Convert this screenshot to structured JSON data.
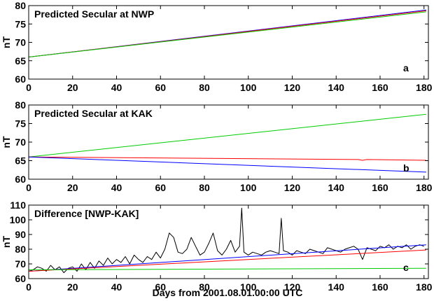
{
  "chart_data": [
    {
      "type": "line",
      "title": "Predicted Secular at NWP",
      "panel_label": "a",
      "ylabel": "nT",
      "xlim": [
        0,
        182
      ],
      "ylim": [
        60,
        80
      ],
      "xticks": [
        "0",
        "20",
        "40",
        "60",
        "80",
        "100",
        "120",
        "140",
        "160",
        "180"
      ],
      "yticks": [
        "60",
        "65",
        "70",
        "75",
        "80"
      ],
      "grid": false,
      "series": [
        {
          "color": "#0000ff",
          "x": [
            0,
            181
          ],
          "y": [
            66.0,
            78.8
          ]
        },
        {
          "color": "#ff0000",
          "x": [
            0,
            181
          ],
          "y": [
            66.0,
            78.6
          ]
        },
        {
          "color": "#00cc00",
          "x": [
            0,
            181
          ],
          "y": [
            66.0,
            78.3
          ]
        }
      ]
    },
    {
      "type": "line",
      "title": "Predicted Secular at KAK",
      "panel_label": "b",
      "ylabel": "nT",
      "xlim": [
        0,
        182
      ],
      "ylim": [
        60,
        80
      ],
      "xticks": [
        "0",
        "20",
        "40",
        "60",
        "80",
        "100",
        "120",
        "140",
        "160",
        "180"
      ],
      "yticks": [
        "60",
        "65",
        "70",
        "75",
        "80"
      ],
      "grid": false,
      "series": [
        {
          "color": "#00cc00",
          "x": [
            0,
            181
          ],
          "y": [
            66.0,
            77.5
          ]
        },
        {
          "color": "#ff0000",
          "x": [
            0,
            150,
            152,
            154,
            181
          ],
          "y": [
            66.0,
            65.3,
            65.1,
            65.3,
            65.1
          ]
        },
        {
          "color": "#0000ff",
          "x": [
            0,
            181
          ],
          "y": [
            66.0,
            61.9
          ]
        }
      ]
    },
    {
      "type": "line",
      "title": "Difference [NWP-KAK]",
      "panel_label": "c",
      "xlabel": "Days from 2001.08.01.00:00 UTC",
      "ylabel": "nT",
      "xlim": [
        0,
        182
      ],
      "ylim": [
        60,
        110
      ],
      "xticks": [
        "0",
        "20",
        "40",
        "60",
        "80",
        "100",
        "120",
        "140",
        "160",
        "180"
      ],
      "yticks": [
        "60",
        "70",
        "80",
        "90",
        "100",
        "110"
      ],
      "grid": false,
      "series": [
        {
          "color": "#000000",
          "x": [
            0,
            2,
            4,
            6,
            8,
            10,
            12,
            14,
            16,
            18,
            20,
            22,
            24,
            26,
            28,
            30,
            32,
            34,
            36,
            38,
            40,
            42,
            44,
            46,
            48,
            50,
            52,
            54,
            56,
            58,
            60,
            62,
            64,
            66,
            68,
            70,
            72,
            74,
            76,
            78,
            80,
            82,
            84,
            86,
            88,
            90,
            92,
            94,
            96,
            97,
            98,
            100,
            102,
            104,
            106,
            108,
            110,
            112,
            114,
            115,
            116,
            118,
            120,
            122,
            124,
            126,
            128,
            130,
            132,
            134,
            136,
            138,
            140,
            142,
            144,
            146,
            148,
            150,
            152,
            154,
            156,
            158,
            160,
            162,
            164,
            166,
            168,
            170,
            172,
            174,
            176,
            178,
            180
          ],
          "y": [
            65,
            66,
            68,
            67,
            65,
            69,
            66,
            68,
            64,
            67,
            68,
            65,
            70,
            66,
            71,
            67,
            72,
            69,
            74,
            70,
            73,
            71,
            75,
            70,
            76,
            73,
            71,
            75,
            73,
            78,
            74,
            80,
            91,
            88,
            78,
            77,
            80,
            88,
            82,
            76,
            78,
            84,
            91,
            79,
            76,
            80,
            86,
            78,
            82,
            108,
            78,
            76,
            78,
            77,
            76,
            78,
            79,
            78,
            77,
            101,
            79,
            78,
            76,
            79,
            78,
            77,
            80,
            79,
            78,
            77,
            81,
            80,
            79,
            78,
            80,
            81,
            82,
            80,
            73,
            81,
            80,
            79,
            82,
            81,
            83,
            80,
            82,
            81,
            83,
            80,
            82,
            83,
            82
          ]
        },
        {
          "color": "#0000ff",
          "x": [
            0,
            181
          ],
          "y": [
            65.0,
            83.0
          ]
        },
        {
          "color": "#ff0000",
          "x": [
            0,
            181
          ],
          "y": [
            65.0,
            79.5
          ]
        },
        {
          "color": "#00cc00",
          "x": [
            0,
            181
          ],
          "y": [
            66.0,
            67.0
          ]
        }
      ]
    }
  ]
}
